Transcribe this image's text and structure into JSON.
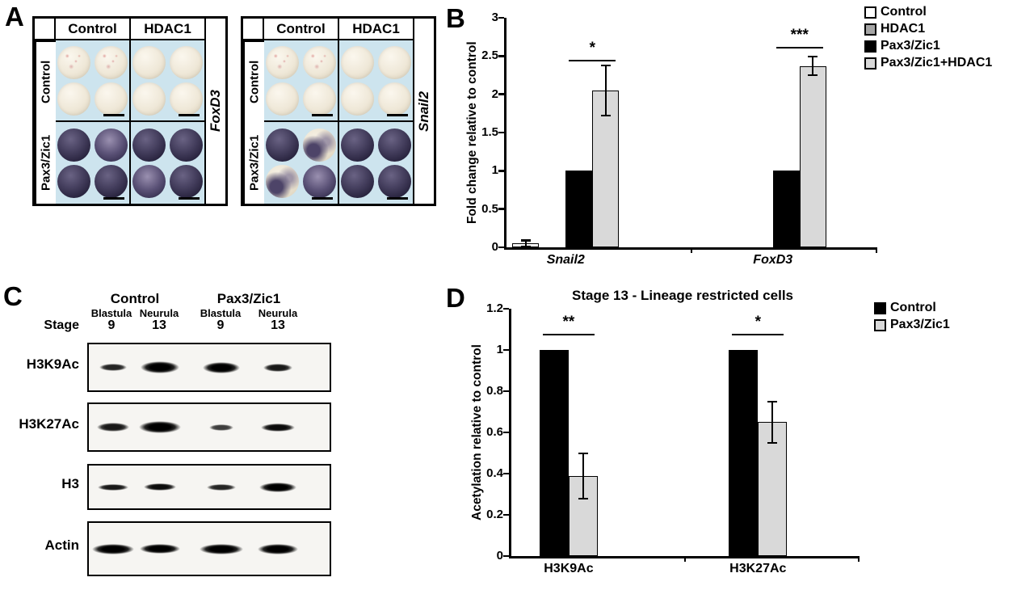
{
  "figure": {
    "panels": {
      "A": {
        "label": "A",
        "blocks": [
          {
            "gene": "FoxD3",
            "col_headers": [
              "Control",
              "HDAC1"
            ],
            "row_headers": [
              "Control",
              "Pax3/Zic1"
            ]
          },
          {
            "gene": "Snail2",
            "col_headers": [
              "Control",
              "HDAC1"
            ],
            "row_headers": [
              "Control",
              "Pax3/Zic1"
            ]
          }
        ]
      },
      "B": {
        "label": "B"
      },
      "C": {
        "label": "C",
        "group_headers": [
          "Control",
          "Pax3/Zic1"
        ],
        "stage_label": "Stage",
        "stage_names": [
          "Blastula",
          "Neurula",
          "Blastula",
          "Neurula"
        ],
        "stage_numbers": [
          "9",
          "13",
          "9",
          "13"
        ],
        "blots": [
          {
            "name": "H3K9Ac",
            "bands": [
              [
                34,
                9,
                0.85
              ],
              [
                48,
                15,
                1
              ],
              [
                46,
                14,
                1
              ],
              [
                36,
                10,
                0.9
              ]
            ]
          },
          {
            "name": "H3K27Ac",
            "bands": [
              [
                40,
                11,
                0.9
              ],
              [
                52,
                15,
                1
              ],
              [
                30,
                8,
                0.75
              ],
              [
                42,
                10,
                0.95
              ]
            ]
          },
          {
            "name": "H3",
            "bands": [
              [
                38,
                8,
                0.9
              ],
              [
                40,
                9,
                0.95
              ],
              [
                36,
                8,
                0.85
              ],
              [
                46,
                12,
                1
              ]
            ]
          },
          {
            "name": "Actin",
            "bands": [
              [
                52,
                13,
                1
              ],
              [
                50,
                12,
                1
              ],
              [
                54,
                13,
                1
              ],
              [
                50,
                13,
                1
              ]
            ]
          }
        ]
      },
      "D": {
        "label": "D"
      }
    }
  },
  "chart_data": [
    {
      "panel": "B",
      "type": "bar",
      "categories": [
        "Snail2",
        "FoxD3"
      ],
      "categories_italic": true,
      "series": [
        {
          "name": "Control",
          "color": "#ffffff",
          "values": [
            0.05,
            0
          ],
          "errors": [
            0.04,
            0
          ]
        },
        {
          "name": "HDAC1",
          "color": "#a6a6a6",
          "values": [
            0,
            0
          ],
          "errors": [
            0,
            0
          ]
        },
        {
          "name": "Pax3/Zic1",
          "color": "#000000",
          "values": [
            1,
            1
          ],
          "errors": [
            0,
            0
          ]
        },
        {
          "name": "Pax3/Zic1+HDAC1",
          "color": "#d9d9d9",
          "values": [
            2.05,
            2.37
          ],
          "errors": [
            0.33,
            0.12
          ]
        }
      ],
      "ylabel": "Fold change relative to control",
      "xlabel": "",
      "ylim": [
        0,
        3
      ],
      "yticks": [
        0,
        0.5,
        1,
        1.5,
        2,
        2.5,
        3
      ],
      "significance": [
        {
          "category": 0,
          "label": "*",
          "line_y": 2.45,
          "span": [
            2,
            3
          ]
        },
        {
          "category": 1,
          "label": "***",
          "line_y": 2.62,
          "span": [
            2,
            3
          ]
        }
      ],
      "legend_position": "top-right",
      "grid": false
    },
    {
      "panel": "D",
      "type": "bar",
      "title": "Stage 13 - Lineage restricted cells",
      "categories": [
        "H3K9Ac",
        "H3K27Ac"
      ],
      "categories_italic": false,
      "series": [
        {
          "name": "Control",
          "color": "#000000",
          "values": [
            1,
            1
          ],
          "errors": [
            0,
            0
          ]
        },
        {
          "name": "Pax3/Zic1",
          "color": "#d9d9d9",
          "values": [
            0.39,
            0.65
          ],
          "errors": [
            0.11,
            0.1
          ]
        }
      ],
      "ylabel": "Acetylation relative to control",
      "xlabel": "",
      "ylim": [
        0,
        1.2
      ],
      "yticks": [
        0,
        0.2,
        0.4,
        0.6,
        0.8,
        1,
        1.2
      ],
      "significance": [
        {
          "category": 0,
          "label": "**",
          "line_y": 1.08,
          "span": [
            0,
            1
          ]
        },
        {
          "category": 1,
          "label": "*",
          "line_y": 1.08,
          "span": [
            0,
            1
          ]
        }
      ],
      "legend_position": "top-right",
      "grid": false
    }
  ]
}
